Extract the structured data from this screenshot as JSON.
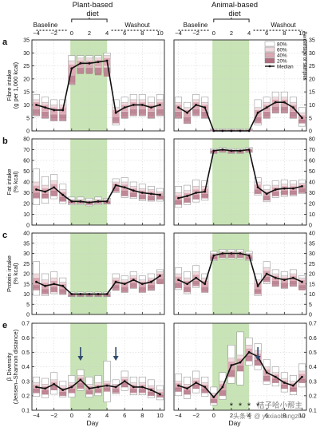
{
  "header": {
    "left_title_line1": "Plant-based",
    "left_title_line2": "diet",
    "right_title_line1": "Animal-based",
    "right_title_line2": "diet",
    "baseline_label": "Baseline",
    "washout_label": "Washout"
  },
  "x_axis": {
    "label": "Day",
    "ticks": [
      "−4",
      "−2",
      "0",
      "2",
      "4",
      "6",
      "8",
      "10"
    ],
    "tick_values": [
      -4,
      -2,
      0,
      2,
      4,
      6,
      8,
      10
    ],
    "range": [
      -4.5,
      10.5
    ],
    "diet_period": [
      0,
      4
    ]
  },
  "legend": {
    "items": [
      "80%",
      "60%",
      "40%",
      "20%",
      "Median"
    ],
    "title": "Percentage of samples",
    "colors": [
      "#ffffff",
      "#f0dade",
      "#dcaab4",
      "#b06b7d",
      "#111111"
    ]
  },
  "watermark": {
    "line1": "桔子哈小帮主",
    "line2": "头条号 @ yuxiaobangzhu"
  },
  "colors": {
    "diet_band": "#c8e3b6",
    "median_line": "#111111",
    "arrow": "#2f4a6e",
    "axis": "#222222",
    "grid": "#cfcfcf"
  },
  "chart_data": [
    {
      "id": "a",
      "type": "line",
      "letter": "a",
      "ylabel_line1": "Fibre intake",
      "ylabel_line2": "(g per 1,000 kcal)",
      "ylim": [
        0,
        35
      ],
      "yticks": [
        0,
        5,
        10,
        15,
        20,
        25,
        30,
        35
      ],
      "series": [
        {
          "diet": "plant",
          "x": [
            -4,
            -3,
            -2,
            -1,
            0,
            1,
            2,
            3,
            4,
            5,
            6,
            7,
            8,
            9,
            10
          ],
          "median": [
            10,
            9,
            8,
            8,
            24,
            26,
            26,
            26.5,
            27,
            7,
            9,
            10,
            10,
            9,
            10
          ],
          "q20": [
            8,
            7,
            6,
            6,
            21,
            24,
            24,
            24,
            24,
            5,
            7,
            8,
            8,
            7,
            8
          ],
          "q40": [
            7,
            6,
            5,
            5,
            19,
            23,
            23,
            23,
            23,
            4,
            6,
            7,
            7,
            6,
            7
          ],
          "q60": [
            12,
            11,
            10,
            10,
            27,
            28,
            28,
            28,
            29,
            9,
            11,
            12,
            12,
            11,
            12
          ],
          "q80": [
            14,
            13,
            12,
            12,
            29,
            29,
            29,
            29,
            30,
            12,
            13,
            14,
            14,
            13,
            14
          ]
        },
        {
          "diet": "animal",
          "x": [
            -4,
            -3,
            -2,
            -1,
            0,
            1,
            2,
            3,
            4,
            5,
            6,
            7,
            8,
            9,
            10
          ],
          "median": [
            9,
            7,
            10,
            9,
            0,
            0,
            0,
            0,
            0,
            7,
            9,
            11,
            11,
            9,
            5
          ],
          "q20": [
            7,
            5,
            8,
            7,
            0,
            0,
            0,
            0,
            0,
            5,
            7,
            9,
            9,
            7,
            4
          ],
          "q40": [
            6,
            4,
            7,
            6,
            0,
            0,
            0,
            0,
            0,
            4,
            6,
            8,
            8,
            6,
            3
          ],
          "q60": [
            11,
            9,
            12,
            11,
            0.5,
            0.5,
            0.5,
            0.5,
            0.5,
            9,
            11,
            13,
            13,
            11,
            7
          ],
          "q80": [
            13,
            11,
            14,
            13,
            0.8,
            0.8,
            0.8,
            0.8,
            0.8,
            12,
            13,
            15,
            15,
            13,
            9
          ]
        }
      ]
    },
    {
      "id": "b",
      "type": "line",
      "letter": "b",
      "ylabel_line1": "Fat intake",
      "ylabel_line2": "(% kcal)",
      "ylim": [
        0,
        80
      ],
      "yticks": [
        0,
        10,
        20,
        30,
        40,
        50,
        60,
        70,
        80
      ],
      "series": [
        {
          "diet": "plant",
          "x": [
            -4,
            -3,
            -2,
            -1,
            0,
            1,
            2,
            3,
            4,
            5,
            6,
            7,
            8,
            9,
            10
          ],
          "median": [
            33,
            31,
            35,
            28,
            22,
            22,
            21,
            22,
            22,
            37,
            35,
            32,
            30,
            29,
            28
          ],
          "q20": [
            29,
            28,
            31,
            25,
            21,
            21,
            20,
            21,
            21,
            34,
            31,
            29,
            27,
            26,
            26
          ],
          "q40": [
            26,
            25,
            28,
            23,
            20,
            20,
            19,
            20,
            20,
            32,
            28,
            27,
            25,
            24,
            24
          ],
          "q60": [
            40,
            37,
            41,
            33,
            24,
            24,
            23,
            24,
            24,
            40,
            40,
            36,
            34,
            33,
            31
          ],
          "q80": [
            52,
            45,
            47,
            38,
            26,
            26,
            25,
            26,
            25,
            43,
            44,
            40,
            38,
            36,
            34
          ]
        },
        {
          "diet": "animal",
          "x": [
            -4,
            -3,
            -2,
            -1,
            0,
            1,
            2,
            3,
            4,
            5,
            6,
            7,
            8,
            9,
            10
          ],
          "median": [
            25,
            27,
            30,
            31,
            69,
            70,
            69,
            69,
            70,
            35,
            29,
            33,
            34,
            34,
            36
          ],
          "q20": [
            22,
            24,
            27,
            28,
            68,
            69,
            68,
            68,
            69,
            32,
            26,
            30,
            31,
            31,
            33
          ],
          "q40": [
            20,
            22,
            25,
            26,
            67,
            68,
            67,
            67,
            68,
            30,
            24,
            28,
            29,
            29,
            31
          ],
          "q60": [
            30,
            32,
            36,
            36,
            70,
            71,
            70,
            70,
            71,
            40,
            33,
            37,
            38,
            38,
            39
          ],
          "q80": [
            36,
            37,
            42,
            41,
            71,
            72,
            71,
            71,
            72,
            44,
            37,
            41,
            42,
            41,
            42
          ]
        }
      ]
    },
    {
      "id": "c",
      "type": "line",
      "letter": "c",
      "ylabel_line1": "Protein intake",
      "ylabel_line2": "(% kcal)",
      "ylim": [
        0,
        40
      ],
      "yticks": [
        0,
        5,
        10,
        15,
        20,
        25,
        30,
        35,
        40
      ],
      "series": [
        {
          "diet": "plant",
          "x": [
            -4,
            -3,
            -2,
            -1,
            0,
            1,
            2,
            3,
            4,
            5,
            6,
            7,
            8,
            9,
            10
          ],
          "median": [
            16,
            14,
            15,
            14,
            10,
            10,
            10,
            10,
            10,
            16,
            15,
            17,
            15,
            16,
            19
          ],
          "q20": [
            14,
            12,
            13,
            12,
            9.5,
            9.5,
            9.5,
            9.5,
            9.5,
            14,
            13,
            15,
            13,
            14,
            17
          ],
          "q40": [
            13,
            11,
            12,
            11,
            9,
            9,
            9,
            9,
            9,
            13,
            12,
            14,
            12,
            13,
            16
          ],
          "q60": [
            20,
            17,
            18,
            16,
            10.5,
            10.5,
            10.5,
            10.5,
            10.5,
            18,
            17,
            19,
            17,
            18,
            21
          ],
          "q80": [
            26,
            20,
            21,
            18,
            11,
            11,
            11,
            11,
            11,
            20,
            19,
            21,
            19,
            20,
            22
          ]
        },
        {
          "diet": "animal",
          "x": [
            -4,
            -3,
            -2,
            -1,
            0,
            1,
            2,
            3,
            4,
            5,
            6,
            7,
            8,
            9,
            10
          ],
          "median": [
            17,
            15,
            18,
            15,
            29,
            30,
            30,
            30,
            29,
            14,
            20,
            18,
            17,
            18,
            16
          ],
          "q20": [
            15,
            13,
            16,
            13,
            28,
            29,
            29,
            29,
            28,
            12,
            18,
            16,
            15,
            16,
            14
          ],
          "q40": [
            14,
            12,
            15,
            12,
            27,
            28,
            28,
            28,
            27,
            11,
            17,
            15,
            14,
            15,
            13
          ],
          "q60": [
            20,
            18,
            21,
            18,
            30,
            31,
            31,
            31,
            30,
            17,
            23,
            20,
            19,
            20,
            18
          ],
          "q80": [
            23,
            21,
            24,
            20,
            31,
            32,
            32,
            32,
            31,
            20,
            26,
            22,
            21,
            22,
            19
          ]
        }
      ]
    },
    {
      "id": "e",
      "type": "line",
      "letter": "e",
      "ylabel_line1": "β Diversity",
      "ylabel_line2": "(Jensen–Shannon distance)",
      "ylim": [
        0.1,
        0.7
      ],
      "yticks": [
        0.1,
        0.2,
        0.3,
        0.4,
        0.5,
        0.6,
        0.7
      ],
      "significance_days": [
        2,
        3,
        4,
        5
      ],
      "significance_marker": "*",
      "series": [
        {
          "diet": "plant",
          "x": [
            -4,
            -3,
            -2,
            -1,
            0,
            1,
            2,
            3,
            4,
            5,
            6,
            7,
            8,
            9,
            10
          ],
          "median": [
            0.26,
            0.25,
            0.28,
            0.24,
            0.26,
            0.31,
            0.25,
            0.26,
            0.27,
            0.26,
            0.3,
            0.26,
            0.26,
            0.24,
            0.21
          ],
          "q20": [
            0.24,
            0.23,
            0.26,
            0.22,
            0.24,
            0.28,
            0.23,
            0.24,
            0.25,
            0.24,
            0.28,
            0.24,
            0.24,
            0.22,
            0.2
          ],
          "q40": [
            0.22,
            0.21,
            0.24,
            0.21,
            0.22,
            0.26,
            0.22,
            0.23,
            0.24,
            0.23,
            0.26,
            0.23,
            0.23,
            0.21,
            0.19
          ],
          "q60": [
            0.29,
            0.28,
            0.31,
            0.27,
            0.29,
            0.34,
            0.28,
            0.29,
            0.3,
            0.28,
            0.33,
            0.29,
            0.29,
            0.27,
            0.24
          ],
          "q80": [
            0.33,
            0.32,
            0.36,
            0.3,
            0.34,
            0.38,
            0.33,
            0.34,
            0.44,
            0.31,
            0.37,
            0.33,
            0.33,
            0.31,
            0.27
          ]
        },
        {
          "diet": "animal",
          "x": [
            -4,
            -3,
            -2,
            -1,
            0,
            1,
            2,
            3,
            4,
            5,
            6,
            7,
            8,
            9,
            10
          ],
          "median": [
            0.27,
            0.25,
            0.29,
            0.26,
            0.19,
            0.26,
            0.41,
            0.43,
            0.5,
            0.47,
            0.36,
            0.33,
            0.29,
            0.27,
            0.33
          ],
          "q20": [
            0.25,
            0.23,
            0.27,
            0.24,
            0.17,
            0.23,
            0.37,
            0.4,
            0.47,
            0.44,
            0.33,
            0.31,
            0.27,
            0.25,
            0.31
          ],
          "q40": [
            0.23,
            0.21,
            0.25,
            0.22,
            0.16,
            0.21,
            0.34,
            0.37,
            0.44,
            0.41,
            0.31,
            0.29,
            0.25,
            0.23,
            0.29
          ],
          "q60": [
            0.3,
            0.28,
            0.32,
            0.29,
            0.22,
            0.3,
            0.46,
            0.48,
            0.55,
            0.51,
            0.4,
            0.36,
            0.32,
            0.3,
            0.37
          ],
          "q80": [
            0.35,
            0.33,
            0.37,
            0.33,
            0.26,
            0.36,
            0.55,
            0.64,
            0.6,
            0.56,
            0.45,
            0.4,
            0.36,
            0.34,
            0.42
          ]
        }
      ],
      "arrows": [
        {
          "diet": "plant",
          "day": 1
        },
        {
          "diet": "plant",
          "day": 5
        },
        {
          "diet": "animal",
          "day": 5
        }
      ]
    }
  ]
}
